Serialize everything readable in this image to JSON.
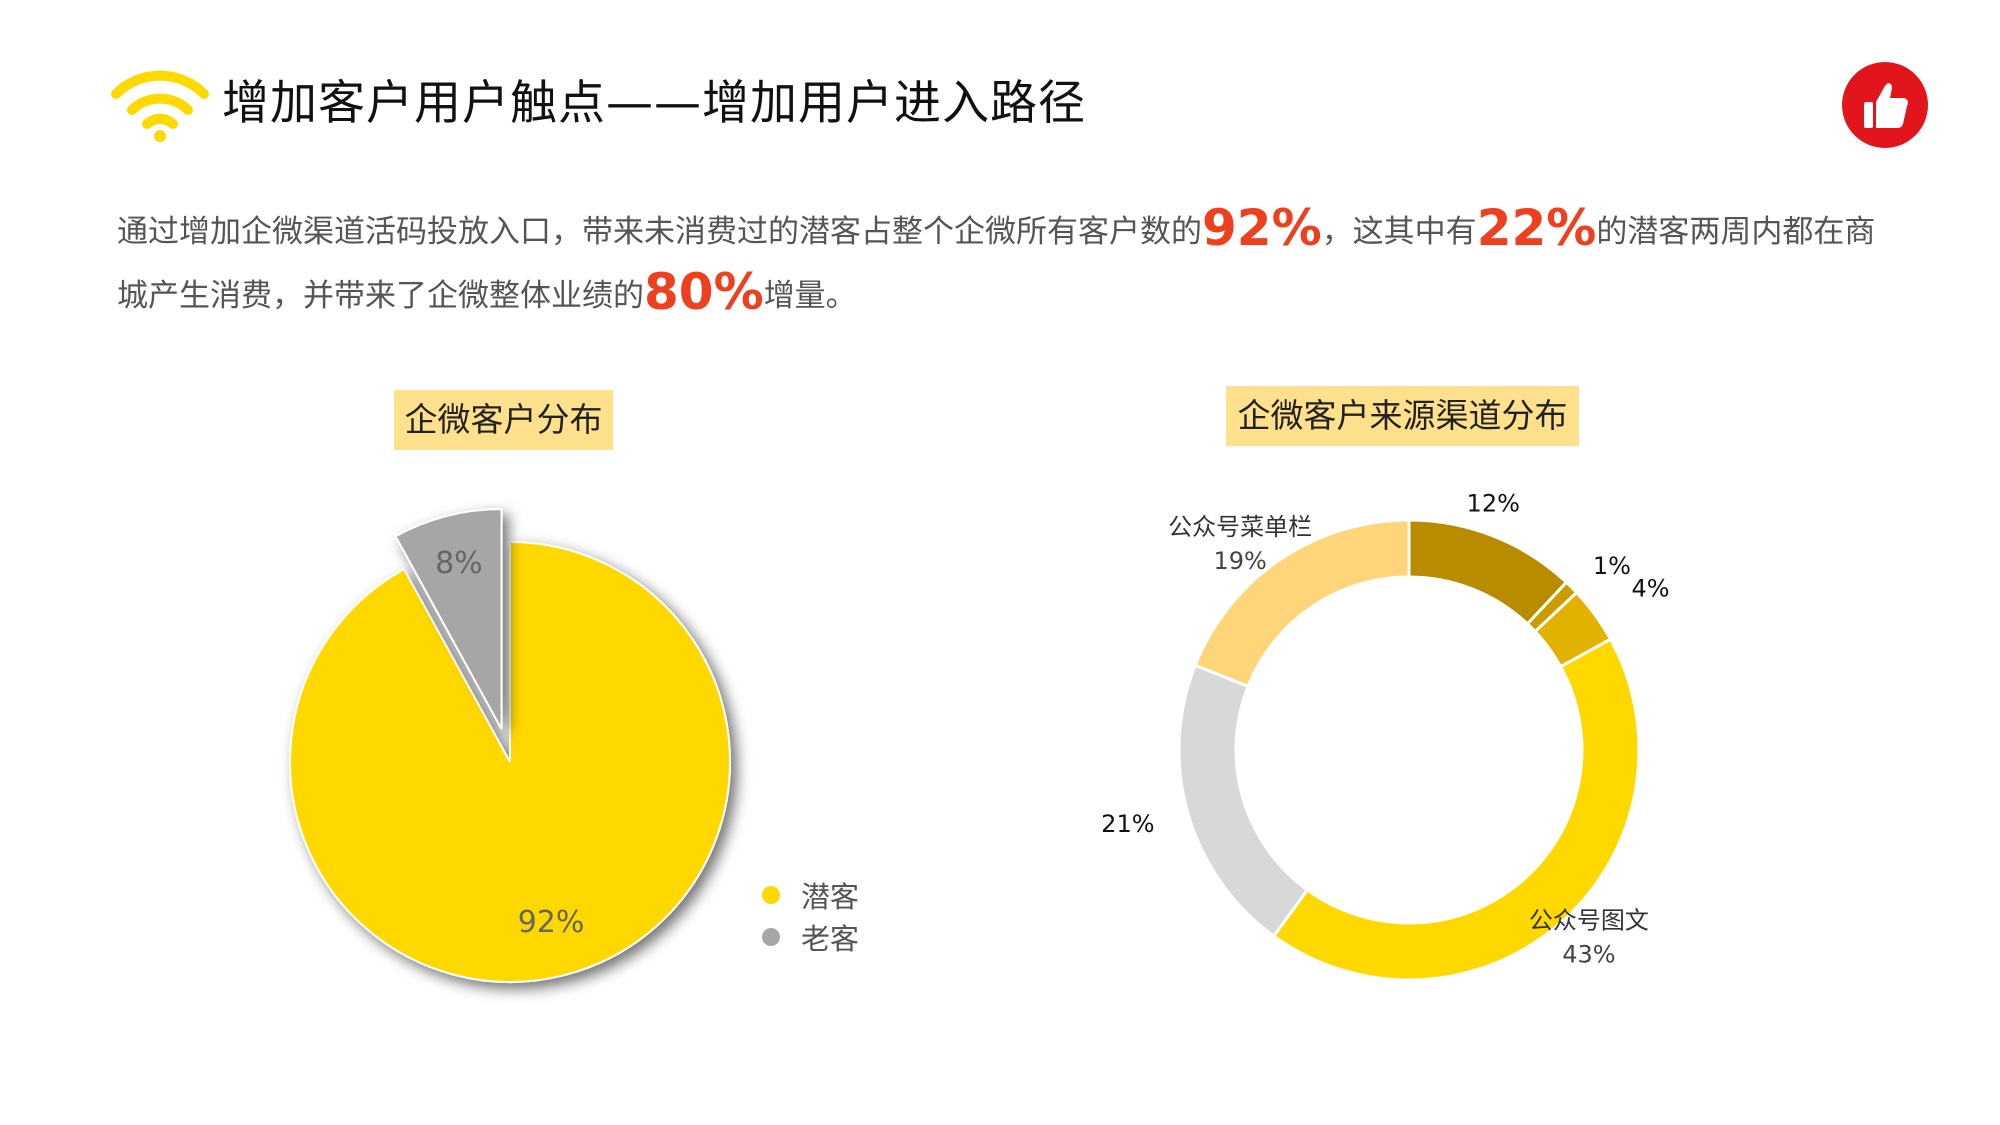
{
  "header": {
    "title": "增加客户用户触点——增加用户进入路径",
    "colors": {
      "logo": "#ffd800",
      "badge": "#e3151c"
    },
    "icons": [
      "wifi-icon",
      "thumbs-up-icon"
    ]
  },
  "intro": {
    "line1": [
      {
        "text": "通过增加企微渠道活码投放入口，带来未消费过的潜客占整个企微所有客户数的",
        "hl": false
      },
      {
        "text": "92%",
        "hl": true
      },
      {
        "text": "，这其中有",
        "hl": false
      },
      {
        "text": "22%",
        "hl": true
      },
      {
        "text": "的潜客两周内都在商",
        "hl": false
      }
    ],
    "line2": [
      {
        "text": "城产生消费，并带来了企微整体业绩的",
        "hl": false
      },
      {
        "text": "80%",
        "hl": true
      },
      {
        "text": "增量。",
        "hl": false
      }
    ],
    "highlight_color": "#ee3f1f"
  },
  "chart_data": [
    {
      "type": "pie",
      "title": "企微客户分布",
      "slices": [
        {
          "name": "潜客",
          "value": 92,
          "label": "92%",
          "color": "#ffd800"
        },
        {
          "name": "老客",
          "value": 8,
          "label": "8%",
          "color": "#a6a6a6",
          "exploded": true
        }
      ],
      "legend": "right-bottom"
    },
    {
      "type": "pie",
      "subtype": "donut",
      "title": "企微客户来源渠道分布",
      "slices": [
        {
          "name": "",
          "value": 12,
          "label": "12%",
          "color": "#b98c00"
        },
        {
          "name": "",
          "value": 1,
          "label": "1%",
          "color": "#cc9b00"
        },
        {
          "name": "",
          "value": 4,
          "label": "4%",
          "color": "#e3b100"
        },
        {
          "name": "公众号图文",
          "value": 43,
          "label": "43%",
          "color": "#ffd800"
        },
        {
          "name": "",
          "value": 21,
          "label": "21%",
          "color": "#d8d8d8"
        },
        {
          "name": "公众号菜单栏",
          "value": 19,
          "label": "19%",
          "color": "#ffd57a"
        }
      ]
    }
  ]
}
